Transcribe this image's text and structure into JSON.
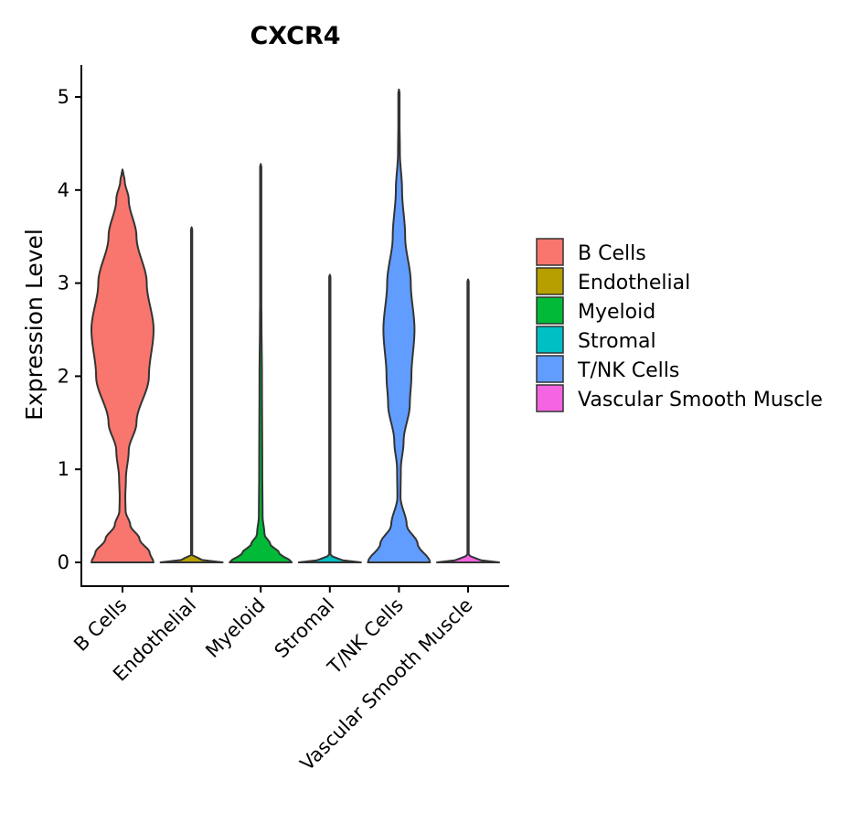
{
  "chart_data": {
    "type": "violin",
    "title": "CXCR4",
    "xlabel": "",
    "ylabel": "Expression Level",
    "ylim": [
      -0.25,
      5.35
    ],
    "yticks": [
      0,
      1,
      2,
      3,
      4,
      5
    ],
    "categories": [
      "B Cells",
      "Endothelial",
      "Myeloid",
      "Stromal",
      "T/NK Cells",
      "Vascular Smooth Muscle"
    ],
    "colors": [
      "#F8766D",
      "#B79F00",
      "#00BA38",
      "#00BFC4",
      "#619CFF",
      "#F564E3"
    ],
    "legend": {
      "position": "right",
      "entries": [
        "B Cells",
        "Endothelial",
        "Myeloid",
        "Stromal",
        "T/NK Cells",
        "Vascular Smooth Muscle"
      ]
    },
    "violins": [
      {
        "name": "B Cells",
        "max": 4.22,
        "profile": [
          [
            0,
            1.0
          ],
          [
            0.1,
            0.88
          ],
          [
            0.25,
            0.55
          ],
          [
            0.4,
            0.25
          ],
          [
            0.55,
            0.1
          ],
          [
            0.7,
            0.09
          ],
          [
            0.9,
            0.11
          ],
          [
            1.2,
            0.2
          ],
          [
            1.5,
            0.45
          ],
          [
            2.0,
            0.85
          ],
          [
            2.5,
            1.0
          ],
          [
            3.0,
            0.78
          ],
          [
            3.5,
            0.45
          ],
          [
            3.9,
            0.2
          ],
          [
            4.1,
            0.07
          ],
          [
            4.22,
            0.0
          ]
        ]
      },
      {
        "name": "Endothelial",
        "max": 3.6,
        "profile": [
          [
            0,
            1.0
          ],
          [
            0.03,
            0.3
          ],
          [
            0.08,
            0.02
          ],
          [
            3.6,
            0.0
          ]
        ]
      },
      {
        "name": "Myeloid",
        "max": 4.28,
        "profile": [
          [
            0,
            1.0
          ],
          [
            0.1,
            0.6
          ],
          [
            0.2,
            0.3
          ],
          [
            0.3,
            0.12
          ],
          [
            0.5,
            0.06
          ],
          [
            1.0,
            0.05
          ],
          [
            2.0,
            0.04
          ],
          [
            2.6,
            0.025
          ],
          [
            3.0,
            0.01
          ],
          [
            4.28,
            0.0
          ]
        ]
      },
      {
        "name": "Stromal",
        "max": 3.09,
        "profile": [
          [
            0,
            1.0
          ],
          [
            0.03,
            0.3
          ],
          [
            0.08,
            0.02
          ],
          [
            3.09,
            0.0
          ]
        ]
      },
      {
        "name": "T/NK Cells",
        "max": 5.08,
        "profile": [
          [
            0,
            1.0
          ],
          [
            0.2,
            0.6
          ],
          [
            0.4,
            0.25
          ],
          [
            0.7,
            0.05
          ],
          [
            1.0,
            0.06
          ],
          [
            1.3,
            0.15
          ],
          [
            1.7,
            0.35
          ],
          [
            2.0,
            0.4
          ],
          [
            2.5,
            0.5
          ],
          [
            3.0,
            0.38
          ],
          [
            3.5,
            0.2
          ],
          [
            4.0,
            0.1
          ],
          [
            4.4,
            0.03
          ],
          [
            5.08,
            0.0
          ]
        ]
      },
      {
        "name": "Vascular Smooth Muscle",
        "max": 3.04,
        "profile": [
          [
            0,
            1.0
          ],
          [
            0.03,
            0.3
          ],
          [
            0.08,
            0.02
          ],
          [
            3.04,
            0.0
          ]
        ]
      }
    ]
  }
}
